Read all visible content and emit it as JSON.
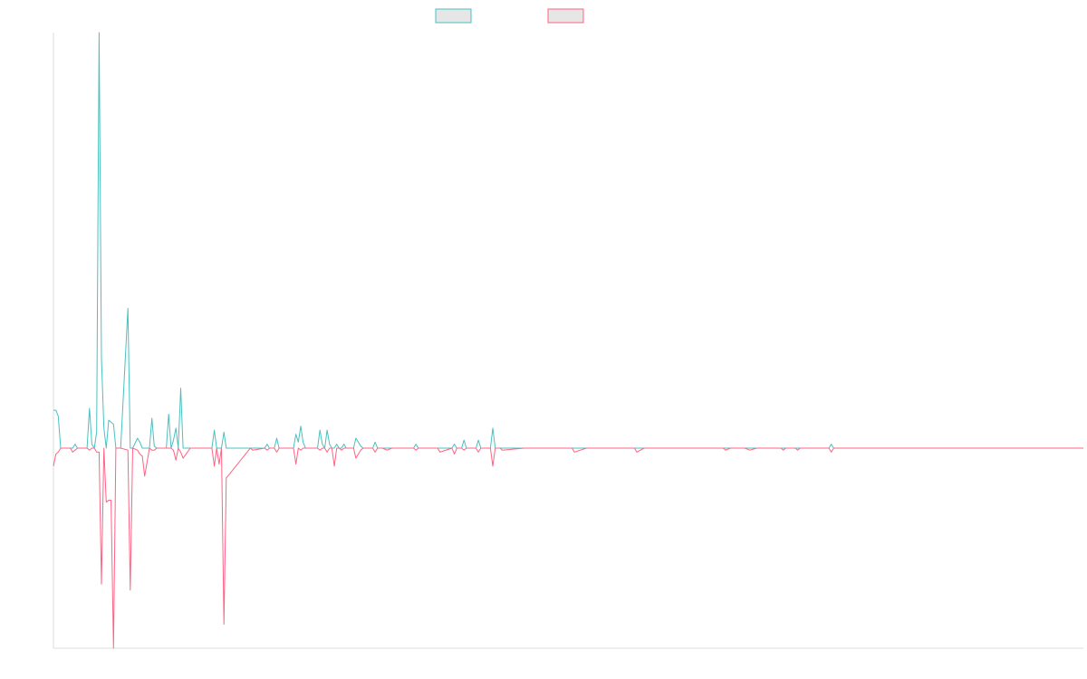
{
  "chart_data": {
    "type": "line",
    "title": "",
    "xlabel": "",
    "ylabel": "",
    "legend_position": "top-center",
    "grid": false,
    "colors": {
      "series_a": "#4bc0c0",
      "series_b": "#ff6384",
      "legend_fill": "#e6e6e6",
      "axis": "#dcdcdc"
    },
    "xlim": [
      0,
      429
    ],
    "ylim": [
      -1.0,
      2.08
    ],
    "series": [
      {
        "color": "#4bc0c0",
        "points": [
          [
            0,
            0.19
          ],
          [
            1,
            0.19
          ],
          [
            2,
            0.16
          ],
          [
            3,
            0
          ],
          [
            7,
            0
          ],
          [
            8,
            0
          ],
          [
            9,
            0.02
          ],
          [
            10,
            0
          ],
          [
            14,
            0
          ],
          [
            15,
            0.2
          ],
          [
            16,
            0.02
          ],
          [
            17,
            0
          ],
          [
            18,
            0.08
          ],
          [
            19,
            2.08
          ],
          [
            20,
            0.45
          ],
          [
            21,
            0.1
          ],
          [
            22,
            0
          ],
          [
            23,
            0.14
          ],
          [
            24,
            0.13
          ],
          [
            25,
            0.12
          ],
          [
            26,
            0
          ],
          [
            28,
            0
          ],
          [
            31,
            0.7
          ],
          [
            32,
            0
          ],
          [
            33,
            0
          ],
          [
            35,
            0.05
          ],
          [
            36,
            0.03
          ],
          [
            37,
            0
          ],
          [
            40,
            0
          ],
          [
            41,
            0.15
          ],
          [
            42,
            0.01
          ],
          [
            43,
            0
          ],
          [
            47,
            0
          ],
          [
            48,
            0.17
          ],
          [
            49,
            0
          ],
          [
            50,
            0.04
          ],
          [
            51,
            0.1
          ],
          [
            52,
            0
          ],
          [
            53,
            0.3
          ],
          [
            54,
            0
          ],
          [
            57,
            0
          ],
          [
            58,
            0
          ],
          [
            59,
            0
          ],
          [
            66,
            0
          ],
          [
            67,
            0.09
          ],
          [
            68,
            0
          ],
          [
            70,
            0
          ],
          [
            71,
            0.08
          ],
          [
            72,
            0
          ],
          [
            82,
            0
          ],
          [
            83,
            0
          ],
          [
            88,
            0
          ],
          [
            89,
            0.02
          ],
          [
            90,
            0
          ],
          [
            92,
            0
          ],
          [
            93,
            0.05
          ],
          [
            94,
            0
          ],
          [
            100,
            0
          ],
          [
            101,
            0.07
          ],
          [
            102,
            0.03
          ],
          [
            103,
            0.11
          ],
          [
            104,
            0.03
          ],
          [
            105,
            0
          ],
          [
            110,
            0
          ],
          [
            111,
            0.09
          ],
          [
            112,
            0.02
          ],
          [
            113,
            0
          ],
          [
            114,
            0.09
          ],
          [
            115,
            0.02
          ],
          [
            116,
            0
          ],
          [
            117,
            0
          ],
          [
            118,
            0.02
          ],
          [
            119,
            0
          ],
          [
            120,
            0
          ],
          [
            121,
            0.02
          ],
          [
            122,
            0
          ],
          [
            125,
            0
          ],
          [
            126,
            0.05
          ],
          [
            127,
            0.03
          ],
          [
            128,
            0.01
          ],
          [
            129,
            0
          ],
          [
            133,
            0
          ],
          [
            134,
            0.03
          ],
          [
            135,
            0
          ],
          [
            137,
            0
          ],
          [
            139,
            0
          ],
          [
            141,
            0
          ],
          [
            142,
            0
          ],
          [
            145,
            0
          ],
          [
            150,
            0
          ],
          [
            151,
            0.02
          ],
          [
            152,
            0
          ],
          [
            160,
            0
          ],
          [
            161,
            0
          ],
          [
            166,
            0
          ],
          [
            167,
            0.02
          ],
          [
            168,
            0
          ],
          [
            170,
            0
          ],
          [
            171,
            0.04
          ],
          [
            172,
            0
          ],
          [
            176,
            0
          ],
          [
            177,
            0.04
          ],
          [
            178,
            0
          ],
          [
            182,
            0
          ],
          [
            183,
            0.1
          ],
          [
            184,
            0
          ],
          [
            186,
            0
          ],
          [
            187,
            0
          ],
          [
            196,
            0
          ],
          [
            200,
            0
          ],
          [
            205,
            0
          ],
          [
            216,
            0
          ],
          [
            217,
            0
          ],
          [
            222,
            0
          ],
          [
            224,
            0
          ],
          [
            232,
            0
          ],
          [
            238,
            0
          ],
          [
            242,
            0
          ],
          [
            243,
            0
          ],
          [
            246,
            0
          ],
          [
            250,
            0
          ],
          [
            256,
            0
          ],
          [
            270,
            0
          ],
          [
            279,
            0
          ],
          [
            280,
            0
          ],
          [
            282,
            0
          ],
          [
            288,
            0
          ],
          [
            290,
            0
          ],
          [
            293,
            0
          ],
          [
            296,
            0
          ],
          [
            303,
            0
          ],
          [
            304,
            0
          ],
          [
            305,
            0
          ],
          [
            309,
            0
          ],
          [
            310,
            0
          ],
          [
            311,
            0
          ],
          [
            323,
            0
          ],
          [
            324,
            0.02
          ],
          [
            325,
            0
          ],
          [
            330,
            0
          ],
          [
            429,
            0
          ]
        ]
      },
      {
        "color": "#ff6384",
        "points": [
          [
            0,
            -0.09
          ],
          [
            1,
            -0.03
          ],
          [
            2,
            -0.02
          ],
          [
            3,
            0
          ],
          [
            7,
            0
          ],
          [
            8,
            -0.02
          ],
          [
            9,
            -0.01
          ],
          [
            10,
            0
          ],
          [
            14,
            0
          ],
          [
            15,
            -0.01
          ],
          [
            16,
            0
          ],
          [
            17,
            0
          ],
          [
            18,
            -0.02
          ],
          [
            19,
            -0.02
          ],
          [
            20,
            -0.68
          ],
          [
            21,
            0
          ],
          [
            22,
            -0.27
          ],
          [
            23,
            -0.26
          ],
          [
            24,
            -0.26
          ],
          [
            25,
            -1.0
          ],
          [
            26,
            0
          ],
          [
            28,
            0
          ],
          [
            31,
            -0.01
          ],
          [
            32,
            -0.71
          ],
          [
            33,
            0
          ],
          [
            35,
            -0.01
          ],
          [
            36,
            -0.03
          ],
          [
            37,
            -0.04
          ],
          [
            38,
            -0.14
          ],
          [
            40,
            0
          ],
          [
            41,
            -0.01
          ],
          [
            42,
            -0.01
          ],
          [
            43,
            0
          ],
          [
            47,
            0
          ],
          [
            48,
            0
          ],
          [
            49,
            0
          ],
          [
            50,
            -0.01
          ],
          [
            51,
            -0.06
          ],
          [
            52,
            0
          ],
          [
            53,
            -0.02
          ],
          [
            54,
            -0.05
          ],
          [
            57,
            0
          ],
          [
            58,
            0
          ],
          [
            59,
            0
          ],
          [
            66,
            0
          ],
          [
            67,
            -0.09
          ],
          [
            68,
            0
          ],
          [
            69,
            -0.08
          ],
          [
            70,
            0
          ],
          [
            71,
            -0.88
          ],
          [
            72,
            -0.15
          ],
          [
            82,
            0
          ],
          [
            83,
            -0.01
          ],
          [
            88,
            0
          ],
          [
            89,
            -0.01
          ],
          [
            90,
            0
          ],
          [
            92,
            0
          ],
          [
            93,
            -0.02
          ],
          [
            94,
            0
          ],
          [
            100,
            0
          ],
          [
            101,
            -0.08
          ],
          [
            102,
            0
          ],
          [
            103,
            -0.01
          ],
          [
            104,
            0
          ],
          [
            105,
            0
          ],
          [
            110,
            0
          ],
          [
            111,
            -0.01
          ],
          [
            112,
            0
          ],
          [
            113,
            0
          ],
          [
            114,
            -0.02
          ],
          [
            115,
            0
          ],
          [
            116,
            0
          ],
          [
            117,
            -0.09
          ],
          [
            118,
            0
          ],
          [
            119,
            0
          ],
          [
            120,
            -0.01
          ],
          [
            121,
            0
          ],
          [
            122,
            0
          ],
          [
            125,
            0
          ],
          [
            126,
            -0.05
          ],
          [
            127,
            -0.03
          ],
          [
            128,
            -0.01
          ],
          [
            129,
            0
          ],
          [
            133,
            0
          ],
          [
            134,
            -0.02
          ],
          [
            135,
            0
          ],
          [
            137,
            0
          ],
          [
            139,
            -0.01
          ],
          [
            141,
            0
          ],
          [
            142,
            0
          ],
          [
            145,
            0
          ],
          [
            150,
            0
          ],
          [
            151,
            -0.01
          ],
          [
            152,
            0
          ],
          [
            160,
            0
          ],
          [
            161,
            -0.02
          ],
          [
            166,
            0
          ],
          [
            167,
            -0.03
          ],
          [
            168,
            0
          ],
          [
            170,
            0
          ],
          [
            171,
            -0.01
          ],
          [
            172,
            0
          ],
          [
            176,
            0
          ],
          [
            177,
            -0.02
          ],
          [
            178,
            0
          ],
          [
            182,
            0
          ],
          [
            183,
            -0.09
          ],
          [
            184,
            0
          ],
          [
            186,
            0
          ],
          [
            187,
            -0.01
          ],
          [
            196,
            0
          ],
          [
            200,
            0
          ],
          [
            205,
            0
          ],
          [
            216,
            0
          ],
          [
            217,
            -0.02
          ],
          [
            222,
            0
          ],
          [
            224,
            0
          ],
          [
            232,
            0
          ],
          [
            238,
            0
          ],
          [
            242,
            0
          ],
          [
            243,
            -0.02
          ],
          [
            246,
            0
          ],
          [
            250,
            0
          ],
          [
            256,
            0
          ],
          [
            270,
            0
          ],
          [
            279,
            0
          ],
          [
            280,
            -0.01
          ],
          [
            282,
            0
          ],
          [
            288,
            0
          ],
          [
            290,
            -0.01
          ],
          [
            293,
            0
          ],
          [
            296,
            0
          ],
          [
            303,
            0
          ],
          [
            304,
            -0.01
          ],
          [
            305,
            0
          ],
          [
            309,
            0
          ],
          [
            310,
            -0.01
          ],
          [
            311,
            0
          ],
          [
            323,
            0
          ],
          [
            324,
            -0.02
          ],
          [
            325,
            0
          ],
          [
            330,
            0
          ],
          [
            429,
            0
          ]
        ]
      }
    ]
  }
}
